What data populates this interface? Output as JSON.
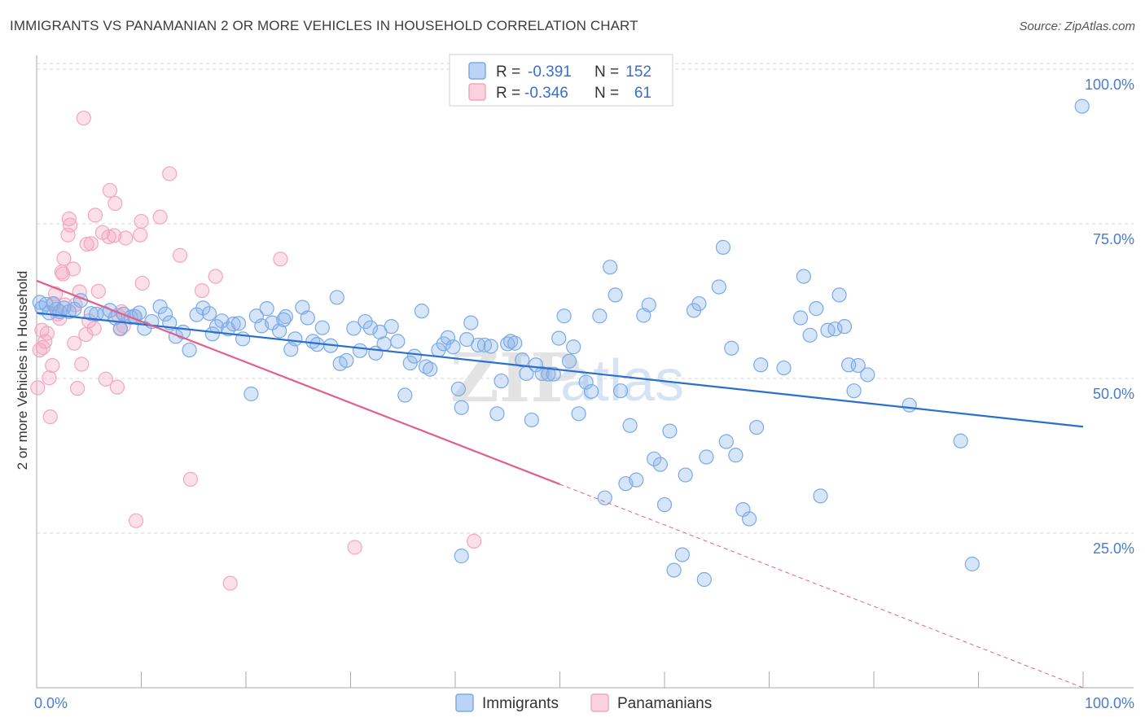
{
  "header": {
    "title": "IMMIGRANTS VS PANAMANIAN 2 OR MORE VEHICLES IN HOUSEHOLD CORRELATION CHART",
    "source": "Source: ZipAtlas.com"
  },
  "watermark": {
    "part1": "ZIP",
    "part2": "atlas"
  },
  "colors": {
    "immigrants": "#7aaae8",
    "immigrants_line": "#2a6fd0",
    "panamanians": "#f3a6bf",
    "panamanians_line": "#e0608a",
    "grid": "#d7d7d7",
    "axis_text": "#4a7bd0"
  },
  "legend": {
    "rows": [
      {
        "series": "immigrants",
        "r_label": "R =",
        "r_value": "-0.391",
        "n_label": "N =",
        "n_value": "152"
      },
      {
        "series": "panamanians",
        "r_label": "R =",
        "r_value": "-0.346",
        "n_label": "N =",
        "n_value": "61"
      }
    ]
  },
  "chart_data": {
    "type": "scatter",
    "title": "IMMIGRANTS VS PANAMANIAN 2 OR MORE VEHICLES IN HOUSEHOLD CORRELATION CHART",
    "xlabel": "",
    "ylabel": "2 or more Vehicles in Household",
    "xlim": [
      0,
      100
    ],
    "ylim": [
      0,
      100
    ],
    "x_tick_labels": [
      "0.0%",
      "100.0%"
    ],
    "y_ticks": [
      25,
      50,
      75,
      100
    ],
    "y_tick_labels": [
      "25.0%",
      "50.0%",
      "75.0%",
      "100.0%"
    ],
    "legend_position": "bottom-center",
    "series": [
      {
        "name": "Immigrants",
        "key": "immigrants",
        "r": -0.391,
        "n": 152,
        "trend": {
          "x": [
            0,
            100
          ],
          "y": [
            60.6,
            42.2
          ],
          "dashed_from": null
        },
        "points": [
          [
            0.3,
            62.3
          ],
          [
            0.5,
            61.4
          ],
          [
            0.9,
            62.0
          ],
          [
            1.2,
            60.6
          ],
          [
            1.6,
            62.1
          ],
          [
            1.9,
            61.2
          ],
          [
            2.2,
            60.8
          ],
          [
            2.6,
            61.4
          ],
          [
            3.1,
            60.8
          ],
          [
            3.6,
            61.2
          ],
          [
            4.2,
            62.6
          ],
          [
            5.2,
            60.5
          ],
          [
            5.7,
            60.4
          ],
          [
            6.5,
            60.5
          ],
          [
            7.0,
            61.0
          ],
          [
            7.5,
            59.8
          ],
          [
            8.0,
            58.1
          ],
          [
            8.3,
            60.4
          ],
          [
            9.0,
            59.9
          ],
          [
            9.4,
            60.0
          ],
          [
            9.8,
            60.6
          ],
          [
            10.3,
            58.1
          ],
          [
            11.0,
            59.2
          ],
          [
            11.8,
            61.6
          ],
          [
            12.3,
            60.4
          ],
          [
            12.7,
            59.0
          ],
          [
            13.3,
            56.8
          ],
          [
            14.0,
            57.5
          ],
          [
            14.6,
            54.6
          ],
          [
            15.3,
            60.3
          ],
          [
            15.9,
            61.4
          ],
          [
            16.5,
            60.5
          ],
          [
            17.2,
            58.4
          ],
          [
            17.7,
            59.3
          ],
          [
            18.3,
            58.0
          ],
          [
            18.8,
            58.8
          ],
          [
            19.3,
            58.9
          ],
          [
            19.7,
            56.4
          ],
          [
            20.5,
            47.5
          ],
          [
            21.0,
            60.1
          ],
          [
            21.5,
            58.5
          ],
          [
            22.0,
            61.3
          ],
          [
            22.5,
            59.0
          ],
          [
            23.2,
            57.7
          ],
          [
            23.8,
            60.0
          ],
          [
            24.3,
            54.7
          ],
          [
            24.7,
            56.4
          ],
          [
            25.4,
            61.5
          ],
          [
            25.9,
            59.8
          ],
          [
            26.4,
            56.0
          ],
          [
            26.8,
            55.5
          ],
          [
            27.3,
            58.2
          ],
          [
            28.1,
            55.3
          ],
          [
            28.7,
            63.1
          ],
          [
            29.0,
            52.4
          ],
          [
            29.6,
            52.9
          ],
          [
            30.3,
            58.1
          ],
          [
            30.9,
            54.5
          ],
          [
            31.4,
            59.2
          ],
          [
            31.9,
            58.2
          ],
          [
            32.4,
            54.1
          ],
          [
            32.8,
            57.5
          ],
          [
            33.2,
            55.6
          ],
          [
            33.9,
            58.4
          ],
          [
            34.5,
            56.0
          ],
          [
            35.2,
            47.3
          ],
          [
            35.7,
            52.5
          ],
          [
            36.1,
            53.6
          ],
          [
            36.8,
            60.9
          ],
          [
            37.2,
            51.9
          ],
          [
            37.6,
            51.5
          ],
          [
            38.4,
            54.6
          ],
          [
            38.9,
            55.6
          ],
          [
            39.3,
            56.6
          ],
          [
            39.8,
            55.1
          ],
          [
            40.3,
            48.3
          ],
          [
            40.6,
            45.3
          ],
          [
            41.1,
            56.3
          ],
          [
            41.5,
            59.0
          ],
          [
            42.2,
            55.4
          ],
          [
            42.8,
            55.4
          ],
          [
            43.4,
            55.2
          ],
          [
            44.0,
            44.3
          ],
          [
            44.4,
            49.6
          ],
          [
            45.0,
            55.6
          ],
          [
            45.3,
            56.0
          ],
          [
            45.7,
            55.7
          ],
          [
            46.4,
            53.0
          ],
          [
            46.8,
            50.8
          ],
          [
            47.3,
            43.3
          ],
          [
            47.7,
            52.2
          ],
          [
            48.3,
            50.8
          ],
          [
            48.9,
            50.7
          ],
          [
            49.4,
            50.7
          ],
          [
            49.9,
            56.5
          ],
          [
            50.4,
            60.1
          ],
          [
            50.9,
            52.8
          ],
          [
            51.3,
            55.1
          ],
          [
            51.8,
            44.3
          ],
          [
            52.5,
            49.4
          ],
          [
            53.0,
            47.9
          ],
          [
            53.8,
            60.1
          ],
          [
            54.3,
            30.7
          ],
          [
            54.8,
            68.0
          ],
          [
            55.3,
            63.5
          ],
          [
            55.8,
            48.0
          ],
          [
            56.3,
            33.0
          ],
          [
            56.7,
            42.4
          ],
          [
            57.3,
            33.6
          ],
          [
            58.0,
            60.2
          ],
          [
            58.5,
            61.9
          ],
          [
            59.0,
            37.0
          ],
          [
            59.6,
            36.1
          ],
          [
            60.0,
            29.6
          ],
          [
            60.5,
            41.5
          ],
          [
            60.9,
            19.0
          ],
          [
            61.7,
            21.5
          ],
          [
            62.0,
            34.4
          ],
          [
            62.8,
            61.0
          ],
          [
            63.3,
            62.1
          ],
          [
            63.8,
            17.5
          ],
          [
            64.0,
            37.3
          ],
          [
            65.2,
            64.8
          ],
          [
            65.6,
            71.2
          ],
          [
            65.9,
            39.8
          ],
          [
            66.4,
            54.9
          ],
          [
            66.8,
            37.6
          ],
          [
            67.5,
            28.8
          ],
          [
            68.1,
            27.3
          ],
          [
            68.8,
            42.1
          ],
          [
            69.2,
            52.2
          ],
          [
            71.4,
            51.7
          ],
          [
            73.0,
            59.8
          ],
          [
            73.3,
            66.5
          ],
          [
            73.9,
            57.0
          ],
          [
            74.5,
            61.3
          ],
          [
            74.9,
            31.0
          ],
          [
            75.6,
            57.8
          ],
          [
            76.3,
            58.0
          ],
          [
            76.7,
            63.5
          ],
          [
            77.2,
            58.4
          ],
          [
            77.6,
            52.2
          ],
          [
            78.1,
            48.0
          ],
          [
            78.5,
            52.1
          ],
          [
            79.4,
            50.6
          ],
          [
            83.4,
            45.7
          ],
          [
            88.3,
            39.9
          ],
          [
            89.4,
            20.0
          ],
          [
            99.9,
            94.0
          ],
          [
            23.6,
            59.5
          ],
          [
            16.8,
            57.2
          ],
          [
            40.6,
            21.3
          ]
        ]
      },
      {
        "name": "Panamanians",
        "key": "panamanians",
        "r": -0.346,
        "n": 61,
        "trend": {
          "x": [
            0,
            100
          ],
          "y": [
            65.8,
            0
          ],
          "dashed_from": 50
        },
        "points": [
          [
            0.1,
            48.5
          ],
          [
            0.3,
            54.6
          ],
          [
            0.5,
            57.8
          ],
          [
            0.6,
            55.0
          ],
          [
            0.8,
            56.0
          ],
          [
            1.0,
            57.3
          ],
          [
            1.2,
            50.1
          ],
          [
            1.3,
            43.8
          ],
          [
            1.5,
            52.1
          ],
          [
            1.6,
            62.0
          ],
          [
            1.8,
            63.7
          ],
          [
            2.0,
            60.4
          ],
          [
            2.2,
            59.7
          ],
          [
            2.4,
            67.2
          ],
          [
            2.5,
            66.9
          ],
          [
            2.6,
            69.4
          ],
          [
            2.7,
            61.9
          ],
          [
            3.0,
            73.2
          ],
          [
            3.1,
            75.8
          ],
          [
            3.2,
            74.8
          ],
          [
            3.5,
            67.7
          ],
          [
            3.6,
            55.7
          ],
          [
            3.7,
            61.9
          ],
          [
            3.9,
            48.4
          ],
          [
            4.1,
            64.0
          ],
          [
            4.3,
            52.3
          ],
          [
            4.5,
            92.1
          ],
          [
            4.7,
            57.1
          ],
          [
            4.8,
            71.7
          ],
          [
            5.2,
            71.8
          ],
          [
            5.5,
            58.1
          ],
          [
            5.6,
            76.4
          ],
          [
            5.9,
            64.1
          ],
          [
            6.3,
            73.6
          ],
          [
            6.6,
            49.9
          ],
          [
            6.9,
            72.9
          ],
          [
            7.0,
            80.4
          ],
          [
            7.4,
            73.1
          ],
          [
            7.5,
            78.3
          ],
          [
            7.7,
            48.6
          ],
          [
            7.8,
            60.2
          ],
          [
            8.0,
            58.0
          ],
          [
            8.1,
            60.8
          ],
          [
            8.3,
            58.5
          ],
          [
            8.5,
            72.7
          ],
          [
            9.3,
            60.1
          ],
          [
            9.5,
            27.0
          ],
          [
            9.9,
            73.2
          ],
          [
            10.0,
            75.4
          ],
          [
            10.1,
            65.4
          ],
          [
            11.8,
            76.1
          ],
          [
            12.7,
            83.1
          ],
          [
            13.7,
            69.9
          ],
          [
            14.7,
            33.7
          ],
          [
            15.8,
            64.2
          ],
          [
            17.1,
            66.5
          ],
          [
            18.5,
            16.9
          ],
          [
            23.3,
            69.3
          ],
          [
            30.4,
            22.7
          ],
          [
            41.8,
            23.7
          ],
          [
            5.0,
            59.3
          ]
        ]
      }
    ]
  },
  "bottom_legend": [
    {
      "key": "immigrants",
      "label": "Immigrants"
    },
    {
      "key": "panamanians",
      "label": "Panamanians"
    }
  ]
}
